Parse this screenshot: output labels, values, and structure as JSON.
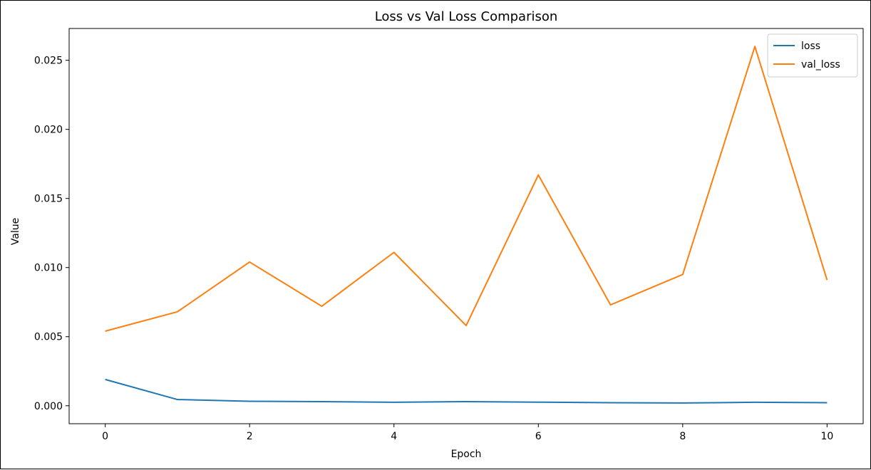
{
  "chart_data": {
    "type": "line",
    "title": "Loss vs Val Loss Comparison",
    "xlabel": "Epoch",
    "ylabel": "Value",
    "x": [
      0,
      1,
      2,
      3,
      4,
      5,
      6,
      7,
      8,
      9,
      10
    ],
    "xlim": [
      -0.5,
      10.5
    ],
    "ylim": [
      -0.0013,
      0.0273
    ],
    "xticks": [
      0,
      2,
      4,
      6,
      8,
      10
    ],
    "xtick_labels": [
      "0",
      "2",
      "4",
      "6",
      "8",
      "10"
    ],
    "yticks": [
      0.0,
      0.005,
      0.01,
      0.015,
      0.02,
      0.025
    ],
    "ytick_labels": [
      "0.000",
      "0.005",
      "0.010",
      "0.015",
      "0.020",
      "0.025"
    ],
    "grid": false,
    "legend_position": "top-right",
    "series": [
      {
        "name": "loss",
        "color": "#1f77b4",
        "values": [
          0.0019,
          0.00045,
          0.00032,
          0.0003,
          0.00025,
          0.0003,
          0.00026,
          0.00022,
          0.0002,
          0.00025,
          0.00022
        ]
      },
      {
        "name": "val_loss",
        "color": "#ff7f0e",
        "values": [
          0.0054,
          0.0068,
          0.0104,
          0.0072,
          0.0111,
          0.0058,
          0.0167,
          0.0073,
          0.0095,
          0.026,
          0.0091
        ]
      }
    ]
  }
}
